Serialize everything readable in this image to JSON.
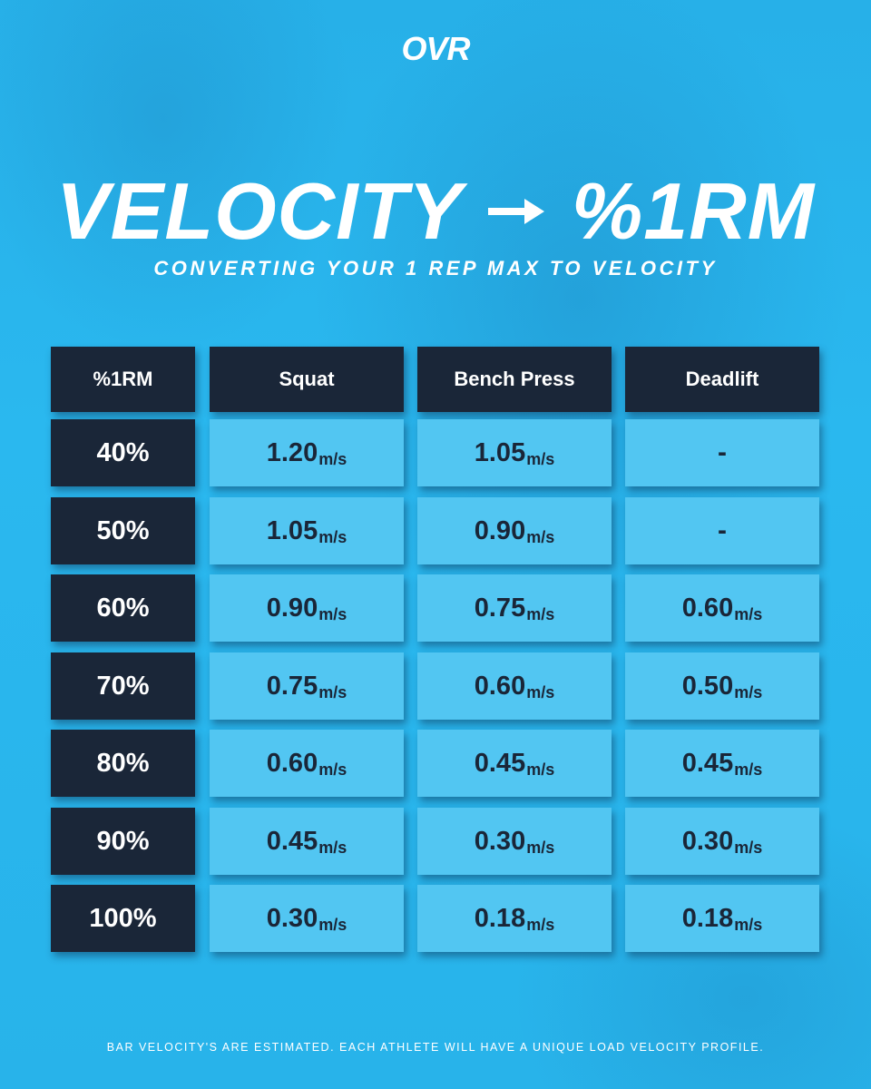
{
  "brand": {
    "logo_text": "OVR",
    "colors": {
      "background": "#29b6ee",
      "dark_cell": "#1a2638",
      "light_cell": "#52c6f2"
    }
  },
  "title": {
    "left": "VELOCITY",
    "arrow_icon": "right-arrow-icon",
    "right": "%1RM"
  },
  "subtitle": "CONVERTING YOUR 1 REP MAX TO VELOCITY",
  "table": {
    "headers": [
      "%1RM",
      "Squat",
      "Bench Press",
      "Deadlift"
    ],
    "unit": "m/s",
    "rows": [
      {
        "pct": "40%",
        "squat": "1.20",
        "bench": "1.05",
        "deadlift": "-"
      },
      {
        "pct": "50%",
        "squat": "1.05",
        "bench": "0.90",
        "deadlift": "-"
      },
      {
        "pct": "60%",
        "squat": "0.90",
        "bench": "0.75",
        "deadlift": "0.60"
      },
      {
        "pct": "70%",
        "squat": "0.75",
        "bench": "0.60",
        "deadlift": "0.50"
      },
      {
        "pct": "80%",
        "squat": "0.60",
        "bench": "0.45",
        "deadlift": "0.45"
      },
      {
        "pct": "90%",
        "squat": "0.45",
        "bench": "0.30",
        "deadlift": "0.30"
      },
      {
        "pct": "100%",
        "squat": "0.30",
        "bench": "0.18",
        "deadlift": "0.18"
      }
    ]
  },
  "footer": "BAR VELOCITY'S ARE ESTIMATED. EACH ATHLETE WILL HAVE A UNIQUE LOAD VELOCITY PROFILE."
}
